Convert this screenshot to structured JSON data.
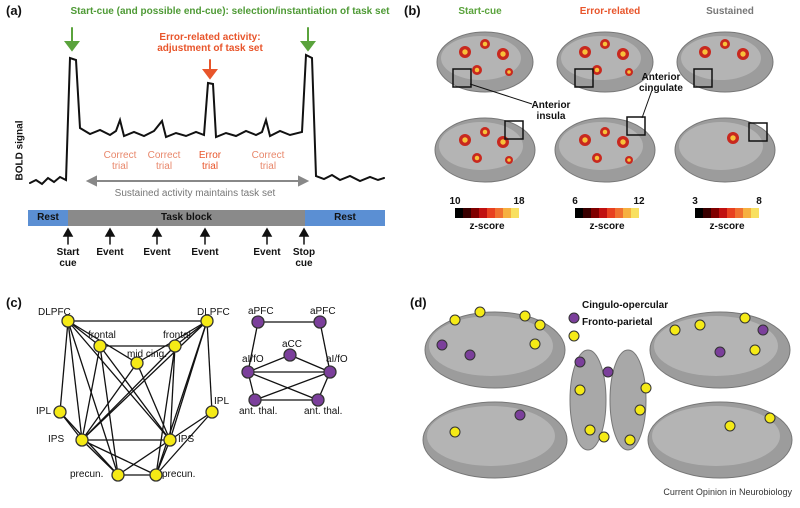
{
  "panels": {
    "a": {
      "label": "(a)",
      "start_note": "Start-cue (and possible end-cue): selection/instantiation of task set",
      "error_note": "Error-related activity: adjustment of task set",
      "y_axis": "BOLD signal",
      "trials": [
        "Correct trial",
        "Correct trial",
        "Error trial",
        "Correct trial"
      ],
      "sustained_note": "Sustained activity maintains task set",
      "timeline": [
        "Rest",
        "Task block",
        "Rest"
      ],
      "events": [
        "Start cue",
        "Event",
        "Event",
        "Event",
        "Event",
        "Stop cue"
      ]
    },
    "b": {
      "label": "(b)",
      "columns": [
        "Start-cue",
        "Error-related",
        "Sustained"
      ],
      "annotations": [
        "Anterior insula",
        "Anterior cingulate"
      ],
      "colorbars": [
        {
          "min": 10,
          "max": 18,
          "label": "z-score"
        },
        {
          "min": 6,
          "max": 12,
          "label": "z-score"
        },
        {
          "min": 3,
          "max": 8,
          "label": "z-score"
        }
      ]
    },
    "c": {
      "label": "(c)",
      "fronto_parietal": [
        "DLPFC",
        "DLPFC",
        "frontal",
        "frontal",
        "mid cing.",
        "IPL",
        "IPL",
        "IPS",
        "IPS",
        "precun.",
        "precun."
      ],
      "cingulo_opercular": [
        "aPFC",
        "aPFC",
        "aCC",
        "aI/fO",
        "aI/fO",
        "ant. thal.",
        "ant. thal."
      ]
    },
    "d": {
      "label": "(d)",
      "legend": [
        "Cingulo-opercular",
        "Fronto-parietal"
      ]
    }
  },
  "footer": "Current Opinion in Neurobiology"
}
